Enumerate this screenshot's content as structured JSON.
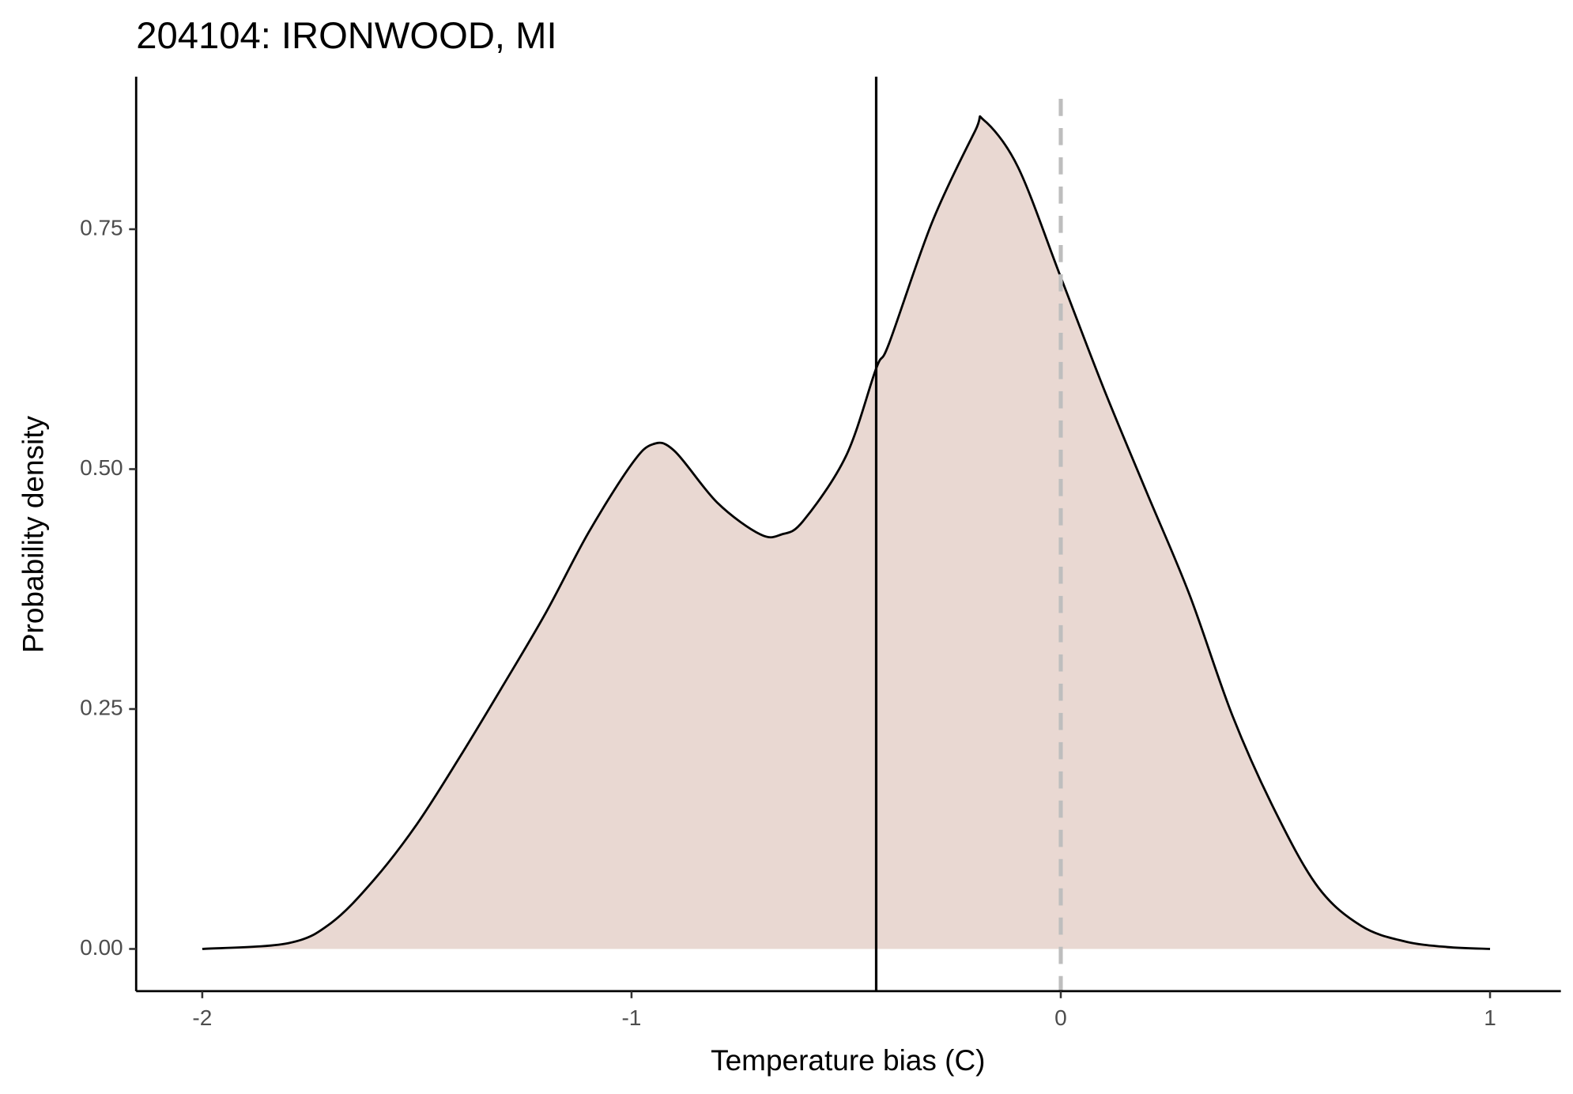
{
  "chart_data": {
    "type": "density",
    "title": "204104: IRONWOOD, MI",
    "x_label": "Temperature bias (C)",
    "y_label": "Probability density",
    "x": [
      -2,
      -1.8,
      -1.7,
      -1.6,
      -1.5,
      -1.4,
      -1.3,
      -1.2,
      -1.1,
      -1.0,
      -0.95,
      -0.9,
      -0.8,
      -0.7,
      -0.65,
      -0.6,
      -0.5,
      -0.43,
      -0.4,
      -0.3,
      -0.2,
      -0.18,
      -0.1,
      0,
      0.1,
      0.2,
      0.3,
      0.4,
      0.5,
      0.6,
      0.7,
      0.8,
      0.9,
      1.0
    ],
    "values": [
      0,
      0.006,
      0.027,
      0.072,
      0.13,
      0.2,
      0.274,
      0.35,
      0.434,
      0.505,
      0.526,
      0.519,
      0.465,
      0.432,
      0.432,
      0.446,
      0.514,
      0.605,
      0.631,
      0.757,
      0.852,
      0.864,
      0.815,
      0.7,
      0.584,
      0.476,
      0.369,
      0.243,
      0.143,
      0.064,
      0.024,
      0.008,
      0.002,
      0
    ],
    "color": "#000000",
    "fill": "#e9d8d2",
    "vlines": [
      {
        "value": -0.43,
        "color": "#000000",
        "dashed": false
      },
      {
        "value": 0,
        "color": "#bebebe",
        "dashed": true
      }
    ],
    "xlim": [
      -2.154,
      1.165
    ],
    "ylim": [
      -0.044,
      0.909
    ],
    "xticks": [
      -2,
      -1,
      0,
      1
    ],
    "yticks": [
      {
        "value": 0,
        "label": "0.00"
      },
      {
        "value": 0.25,
        "label": "0.25"
      },
      {
        "value": 0.5,
        "label": "0.50"
      },
      {
        "value": 0.75,
        "label": "0.75"
      }
    ],
    "grid": false
  }
}
